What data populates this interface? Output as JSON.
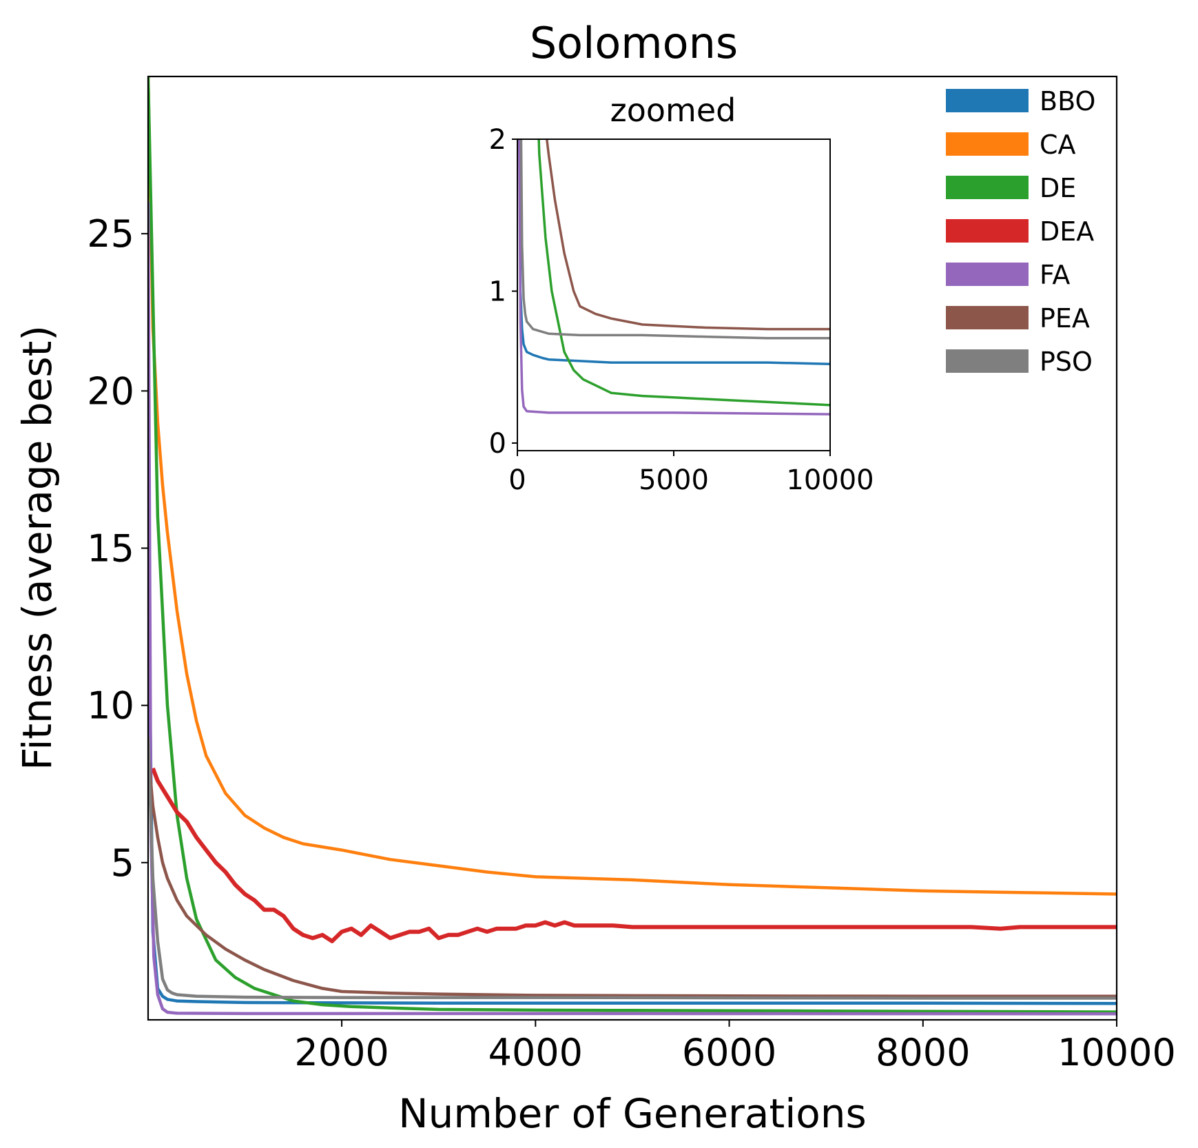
{
  "chart_data": [
    {
      "type": "line",
      "title": "Solomons",
      "xlabel": "Number of Generations",
      "ylabel": "Fitness (average best)",
      "xlim": [
        1,
        10000
      ],
      "ylim": [
        0,
        30
      ],
      "xticks": [
        2000,
        4000,
        6000,
        8000,
        10000
      ],
      "yticks": [
        5,
        10,
        15,
        20,
        25
      ],
      "grid": false,
      "legend": "top-right",
      "series": [
        {
          "name": "BBO",
          "color": "#1f77b4",
          "x": [
            1,
            50,
            100,
            150,
            200,
            300,
            500,
            800,
            1000,
            2000,
            3000,
            5000,
            8000,
            10000
          ],
          "y": [
            15,
            2.8,
            1.0,
            0.75,
            0.65,
            0.6,
            0.58,
            0.56,
            0.55,
            0.54,
            0.53,
            0.53,
            0.53,
            0.52
          ]
        },
        {
          "name": "CA",
          "color": "#ff7f0e",
          "x": [
            1,
            50,
            100,
            150,
            200,
            300,
            400,
            500,
            600,
            800,
            1000,
            1200,
            1400,
            1600,
            2000,
            2500,
            3000,
            3500,
            4000,
            5000,
            6000,
            7000,
            8000,
            9000,
            10000
          ],
          "y": [
            30,
            22,
            19,
            17,
            15.5,
            13,
            11,
            9.5,
            8.4,
            7.2,
            6.5,
            6.1,
            5.8,
            5.6,
            5.4,
            5.1,
            4.9,
            4.7,
            4.55,
            4.45,
            4.3,
            4.2,
            4.1,
            4.05,
            4.0
          ]
        },
        {
          "name": "DE",
          "color": "#2ca02c",
          "x": [
            1,
            100,
            200,
            300,
            400,
            500,
            700,
            900,
            1100,
            1300,
            1500,
            1800,
            2100,
            2500,
            3000,
            4000,
            5000,
            6000,
            7000,
            8000,
            9000,
            10000
          ],
          "y": [
            30,
            16,
            10,
            6.5,
            4.5,
            3.2,
            1.9,
            1.35,
            1.0,
            0.8,
            0.6,
            0.48,
            0.42,
            0.38,
            0.33,
            0.31,
            0.3,
            0.29,
            0.28,
            0.27,
            0.26,
            0.25
          ]
        },
        {
          "name": "DEA",
          "color": "#d62728",
          "x": [
            50,
            100,
            200,
            300,
            400,
            500,
            600,
            700,
            800,
            900,
            1000,
            1100,
            1200,
            1300,
            1400,
            1500,
            1600,
            1700,
            1800,
            1900,
            2000,
            2100,
            2200,
            2300,
            2400,
            2500,
            2600,
            2700,
            2800,
            2900,
            3000,
            3100,
            3200,
            3300,
            3400,
            3500,
            3600,
            3700,
            3800,
            3900,
            4000,
            4100,
            4200,
            4300,
            4400,
            4500,
            4600,
            4800,
            5000,
            5500,
            6000,
            6500,
            7000,
            7500,
            8000,
            8500,
            8800,
            9000,
            9500,
            10000
          ],
          "y": [
            8.0,
            7.6,
            7.1,
            6.6,
            6.3,
            5.8,
            5.4,
            5.0,
            4.7,
            4.3,
            4.0,
            3.8,
            3.5,
            3.5,
            3.3,
            2.9,
            2.7,
            2.6,
            2.7,
            2.5,
            2.8,
            2.9,
            2.7,
            3.0,
            2.8,
            2.6,
            2.7,
            2.8,
            2.8,
            2.9,
            2.6,
            2.7,
            2.7,
            2.8,
            2.9,
            2.8,
            2.9,
            2.9,
            2.9,
            3.0,
            3.0,
            3.1,
            3.0,
            3.1,
            3.0,
            3.0,
            3.0,
            3.0,
            2.95,
            2.95,
            2.95,
            2.95,
            2.95,
            2.95,
            2.95,
            2.95,
            2.9,
            2.95,
            2.95,
            2.95
          ]
        },
        {
          "name": "FA",
          "color": "#9467bd",
          "x": [
            1,
            30,
            60,
            100,
            150,
            200,
            300,
            1000,
            5000,
            10000
          ],
          "y": [
            26,
            6,
            2,
            0.8,
            0.35,
            0.24,
            0.21,
            0.2,
            0.2,
            0.19
          ]
        },
        {
          "name": "PEA",
          "color": "#8c564b",
          "x": [
            1,
            50,
            100,
            150,
            200,
            300,
            400,
            600,
            800,
            1000,
            1200,
            1500,
            1800,
            2000,
            2500,
            3000,
            4000,
            5000,
            6000,
            8000,
            10000
          ],
          "y": [
            8.5,
            6.8,
            5.8,
            5.0,
            4.5,
            3.8,
            3.3,
            2.7,
            2.25,
            1.9,
            1.6,
            1.25,
            1.0,
            0.9,
            0.85,
            0.82,
            0.78,
            0.77,
            0.76,
            0.75,
            0.75
          ]
        },
        {
          "name": "PSO",
          "color": "#7f7f7f",
          "x": [
            1,
            50,
            100,
            150,
            200,
            250,
            300,
            500,
            1000,
            2000,
            4000,
            6000,
            8000,
            10000
          ],
          "y": [
            9,
            4.5,
            2.5,
            1.3,
            0.95,
            0.85,
            0.8,
            0.75,
            0.72,
            0.71,
            0.71,
            0.7,
            0.69,
            0.69
          ]
        }
      ]
    },
    {
      "type": "line",
      "title": "zoomed",
      "xlim": [
        0,
        10000
      ],
      "ylim": [
        -0.05,
        2
      ],
      "xticks": [
        0,
        5000,
        10000
      ],
      "yticks": [
        0,
        1,
        2
      ],
      "grid": false,
      "series_ref": "same series as main chart"
    }
  ]
}
